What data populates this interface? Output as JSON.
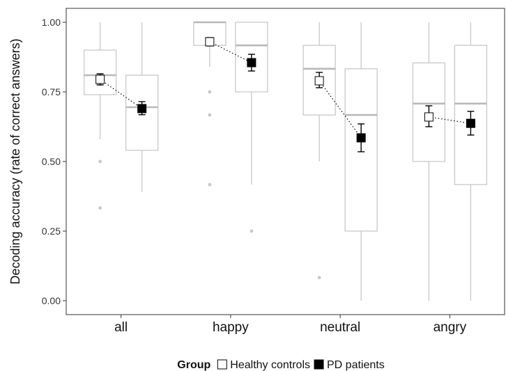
{
  "chart_data": {
    "type": "box",
    "title": "",
    "xlabel": "",
    "ylabel": "Decoding accuracy (rate of correct answers)",
    "ylim": [
      -0.05,
      1.05
    ],
    "yticks": [
      "0.00",
      "0.25",
      "0.50",
      "0.75",
      "1.00"
    ],
    "ytick_values": [
      0,
      0.25,
      0.5,
      0.75,
      1.0
    ],
    "categories": [
      "all",
      "happy",
      "neutral",
      "angry"
    ],
    "grid": false,
    "legend": {
      "title": "Group",
      "position": "bottom",
      "entries": [
        "Healthy controls",
        "PD patients"
      ]
    },
    "series": [
      {
        "name": "Healthy controls",
        "marker_fill": "#ffffff",
        "boxes": [
          {
            "whisker_low": 0.58,
            "q1": 0.74,
            "median": 0.81,
            "q3": 0.9,
            "whisker_high": 1.0,
            "outliers": [
              0.5,
              0.333
            ]
          },
          {
            "whisker_low": 0.84,
            "q1": 0.917,
            "median": 1.0,
            "q3": 1.0,
            "whisker_high": 1.0,
            "outliers": [
              0.75,
              0.667,
              0.417
            ]
          },
          {
            "whisker_low": 0.5,
            "q1": 0.667,
            "median": 0.833,
            "q3": 0.917,
            "whisker_high": 1.0,
            "outliers": [
              0.083
            ]
          },
          {
            "whisker_low": 0.0,
            "q1": 0.5,
            "median": 0.708,
            "q3": 0.854,
            "whisker_high": 1.0,
            "outliers": []
          }
        ],
        "means": [
          0.795,
          0.93,
          0.79,
          0.66
        ],
        "error_low": [
          0.775,
          0.915,
          0.765,
          0.625
        ],
        "error_high": [
          0.815,
          0.945,
          0.82,
          0.7
        ]
      },
      {
        "name": "PD patients",
        "marker_fill": "#000000",
        "boxes": [
          {
            "whisker_low": 0.39,
            "q1": 0.54,
            "median": 0.695,
            "q3": 0.81,
            "whisker_high": 1.0,
            "outliers": []
          },
          {
            "whisker_low": 0.417,
            "q1": 0.75,
            "median": 0.917,
            "q3": 1.0,
            "whisker_high": 1.0,
            "outliers": [
              0.25
            ]
          },
          {
            "whisker_low": 0.0,
            "q1": 0.25,
            "median": 0.667,
            "q3": 0.833,
            "whisker_high": 1.0,
            "outliers": []
          },
          {
            "whisker_low": 0.0,
            "q1": 0.417,
            "median": 0.708,
            "q3": 0.917,
            "whisker_high": 1.0,
            "outliers": []
          }
        ],
        "means": [
          0.69,
          0.855,
          0.585,
          0.637
        ],
        "error_low": [
          0.668,
          0.825,
          0.535,
          0.595
        ],
        "error_high": [
          0.715,
          0.885,
          0.635,
          0.68
        ]
      }
    ],
    "colors": {
      "box_stroke": "#c8c8c8",
      "median_stroke": "#b8b8b8",
      "outlier": "#c8c8c8",
      "axis": "#333333",
      "marker_stroke": "#000000"
    }
  }
}
